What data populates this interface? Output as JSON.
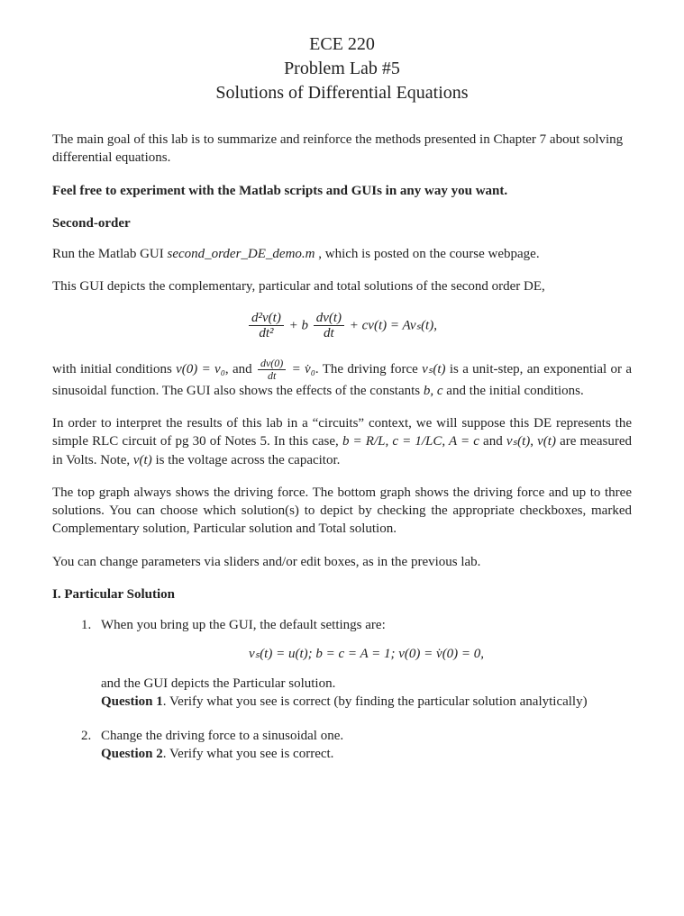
{
  "colors": {
    "text": "#222222",
    "background": "#ffffff",
    "rule": "#222222"
  },
  "typography": {
    "body_family": "Times New Roman",
    "body_size_pt": 11,
    "title_size_pt": 15
  },
  "title": {
    "line1": "ECE 220",
    "line2": "Problem Lab #5",
    "line3": "Solutions of Differential Equations"
  },
  "intro": "The main goal of this lab is to summarize and reinforce the methods presented in Chapter 7 about solving differential equations.",
  "experiment_note": "Feel free to experiment with the Matlab scripts and GUIs in any way you want.",
  "section1": {
    "heading": "Second-order",
    "run_prefix": "Run the Matlab GUI ",
    "script_name": "second_order_DE_demo.m",
    "run_suffix": " , which is posted on the course webpage.",
    "depicts": "This GUI depicts the complementary, particular and total solutions of the second order DE,",
    "eq_main": {
      "term1_num": "d²v(t)",
      "term1_den": "dt²",
      "plus_b": " + b",
      "term2_num": "dv(t)",
      "term2_den": "dt",
      "rest": " + cv(t) = Avₛ(t),"
    },
    "ic_para_a": "with  initial  conditions  ",
    "ic_v0": "v(0) = v₀",
    "ic_and": ",  and  ",
    "ic_frac_num": "dv(0)",
    "ic_frac_den": "dt",
    "ic_eq": " = v̇₀",
    "ic_para_b": ".   The  driving  force  ",
    "ic_vs": "vₛ(t)",
    "ic_para_c": "  is  a  unit-step,  an exponential or a sinusoidal function.  The GUI also shows the effects of the constants ",
    "ic_bc": "b, c",
    "ic_para_d": " and the initial conditions.",
    "interpret_a": "In  order  to  interpret  the  results  of  this  lab  in  a  “circuits”  context,  we  will  suppose  this  DE represents the simple RLC circuit of pg 30 of Notes 5.  In this case, ",
    "interpret_eq": "b = R/L, c   = 1/LC, A = c",
    "interpret_b": " and ",
    "interpret_vs": "vₛ(t)",
    "interpret_c": ", ",
    "interpret_vt": "v(t)",
    "interpret_d": " are measured in Volts.  Note, ",
    "interpret_vt2": "v(t)",
    "interpret_e": " is the voltage across the capacitor.",
    "topgraph": "The top graph always shows the driving force.  The bottom graph shows the driving force and up to  three  solutions.   You  can  choose  which  solution(s)  to  depict  by  checking  the  appropriate checkboxes, marked Complementary solution, Particular solution and Total solution.",
    "sliders": "You can change parameters via sliders and/or edit boxes, as in the previous lab."
  },
  "sectionI": {
    "heading": "I. Particular Solution",
    "items": [
      {
        "num": "1.",
        "lead": "When you bring up the GUI, the default settings are:",
        "eq": "vₛ(t) = u(t); b = c = A = 1; v(0) = v̇(0) = 0,",
        "after": "and the GUI depicts the Particular solution.",
        "q_label": "Question 1",
        "q_text": ".  Verify what you see is correct (by finding the particular solution analytically)"
      },
      {
        "num": "2.",
        "lead": "Change the driving force to a sinusoidal one.",
        "q_label": "Question 2",
        "q_text": ".  Verify what you see is correct."
      }
    ]
  }
}
